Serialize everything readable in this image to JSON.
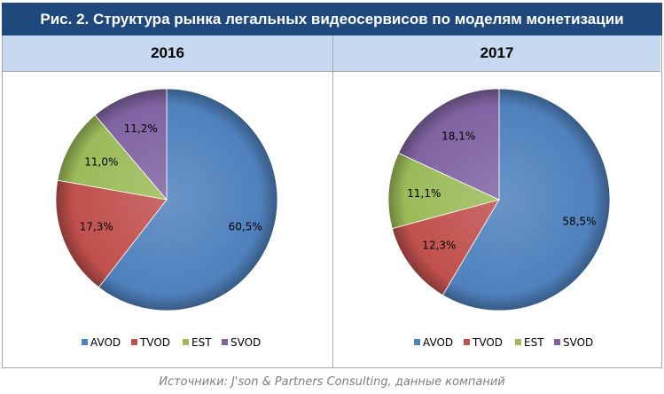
{
  "title": "Рис. 2. Структура рынка легальных видеосервисов по моделям монетизации",
  "source": "Источники: J'son & Partners Consulting, данные компаний",
  "colors": {
    "AVOD": "#4f81bd",
    "TVOD": "#c0504d",
    "EST": "#9bbb59",
    "SVOD": "#8064a2",
    "title_bg": "#1f497d",
    "header_bg": "#c6d9f1"
  },
  "chart_data": [
    {
      "type": "pie",
      "title": "2016",
      "categories": [
        "AVOD",
        "TVOD",
        "EST",
        "SVOD"
      ],
      "values": [
        60.5,
        17.3,
        11.0,
        11.2
      ],
      "labels": [
        "60,5%",
        "17,3%",
        "11,0%",
        "11,2%"
      ],
      "legend": "bottom"
    },
    {
      "type": "pie",
      "title": "2017",
      "categories": [
        "AVOD",
        "TVOD",
        "EST",
        "SVOD"
      ],
      "values": [
        58.5,
        12.3,
        11.1,
        18.1
      ],
      "labels": [
        "58,5%",
        "12,3%",
        "11,1%",
        "18,1%"
      ],
      "legend": "bottom"
    }
  ]
}
